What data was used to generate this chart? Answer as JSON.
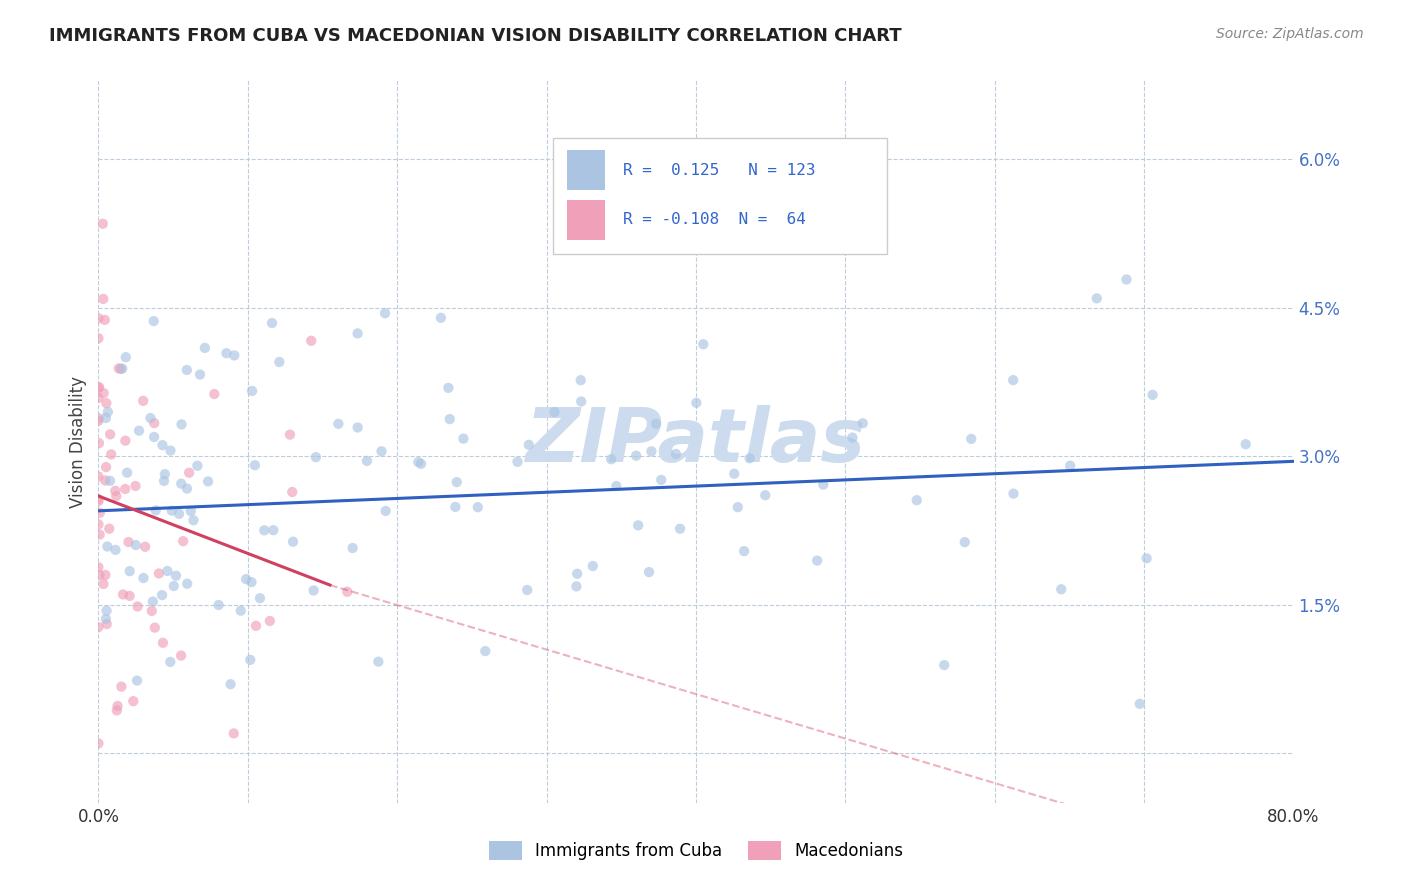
{
  "title": "IMMIGRANTS FROM CUBA VS MACEDONIAN VISION DISABILITY CORRELATION CHART",
  "source": "Source: ZipAtlas.com",
  "ylabel": "Vision Disability",
  "y_ticks": [
    0.0,
    0.015,
    0.03,
    0.045,
    0.06
  ],
  "y_tick_labels": [
    "",
    "1.5%",
    "3.0%",
    "4.5%",
    "6.0%"
  ],
  "xlim": [
    0.0,
    0.8
  ],
  "ylim": [
    -0.005,
    0.068
  ],
  "legend_label_blue": "Immigrants from Cuba",
  "legend_label_pink": "Macedonians",
  "r_blue": 0.125,
  "n_blue": 123,
  "r_pink": -0.108,
  "n_pink": 64,
  "blue_color": "#aac4e2",
  "pink_color": "#f0a0b8",
  "blue_line_color": "#3060c0",
  "pink_line_color": "#d04060",
  "watermark": "ZIPatlas",
  "title_fontsize": 13,
  "watermark_color": "#ccdcee",
  "scatter_size": 55,
  "scatter_alpha": 0.65,
  "blue_line_start_y": 0.0245,
  "blue_line_end_y": 0.0295,
  "pink_line_solid_start_y": 0.026,
  "pink_line_solid_end_y": 0.017,
  "pink_line_solid_end_x": 0.155,
  "pink_line_dash_end_y": -0.012,
  "pink_line_dash_end_x": 0.8
}
